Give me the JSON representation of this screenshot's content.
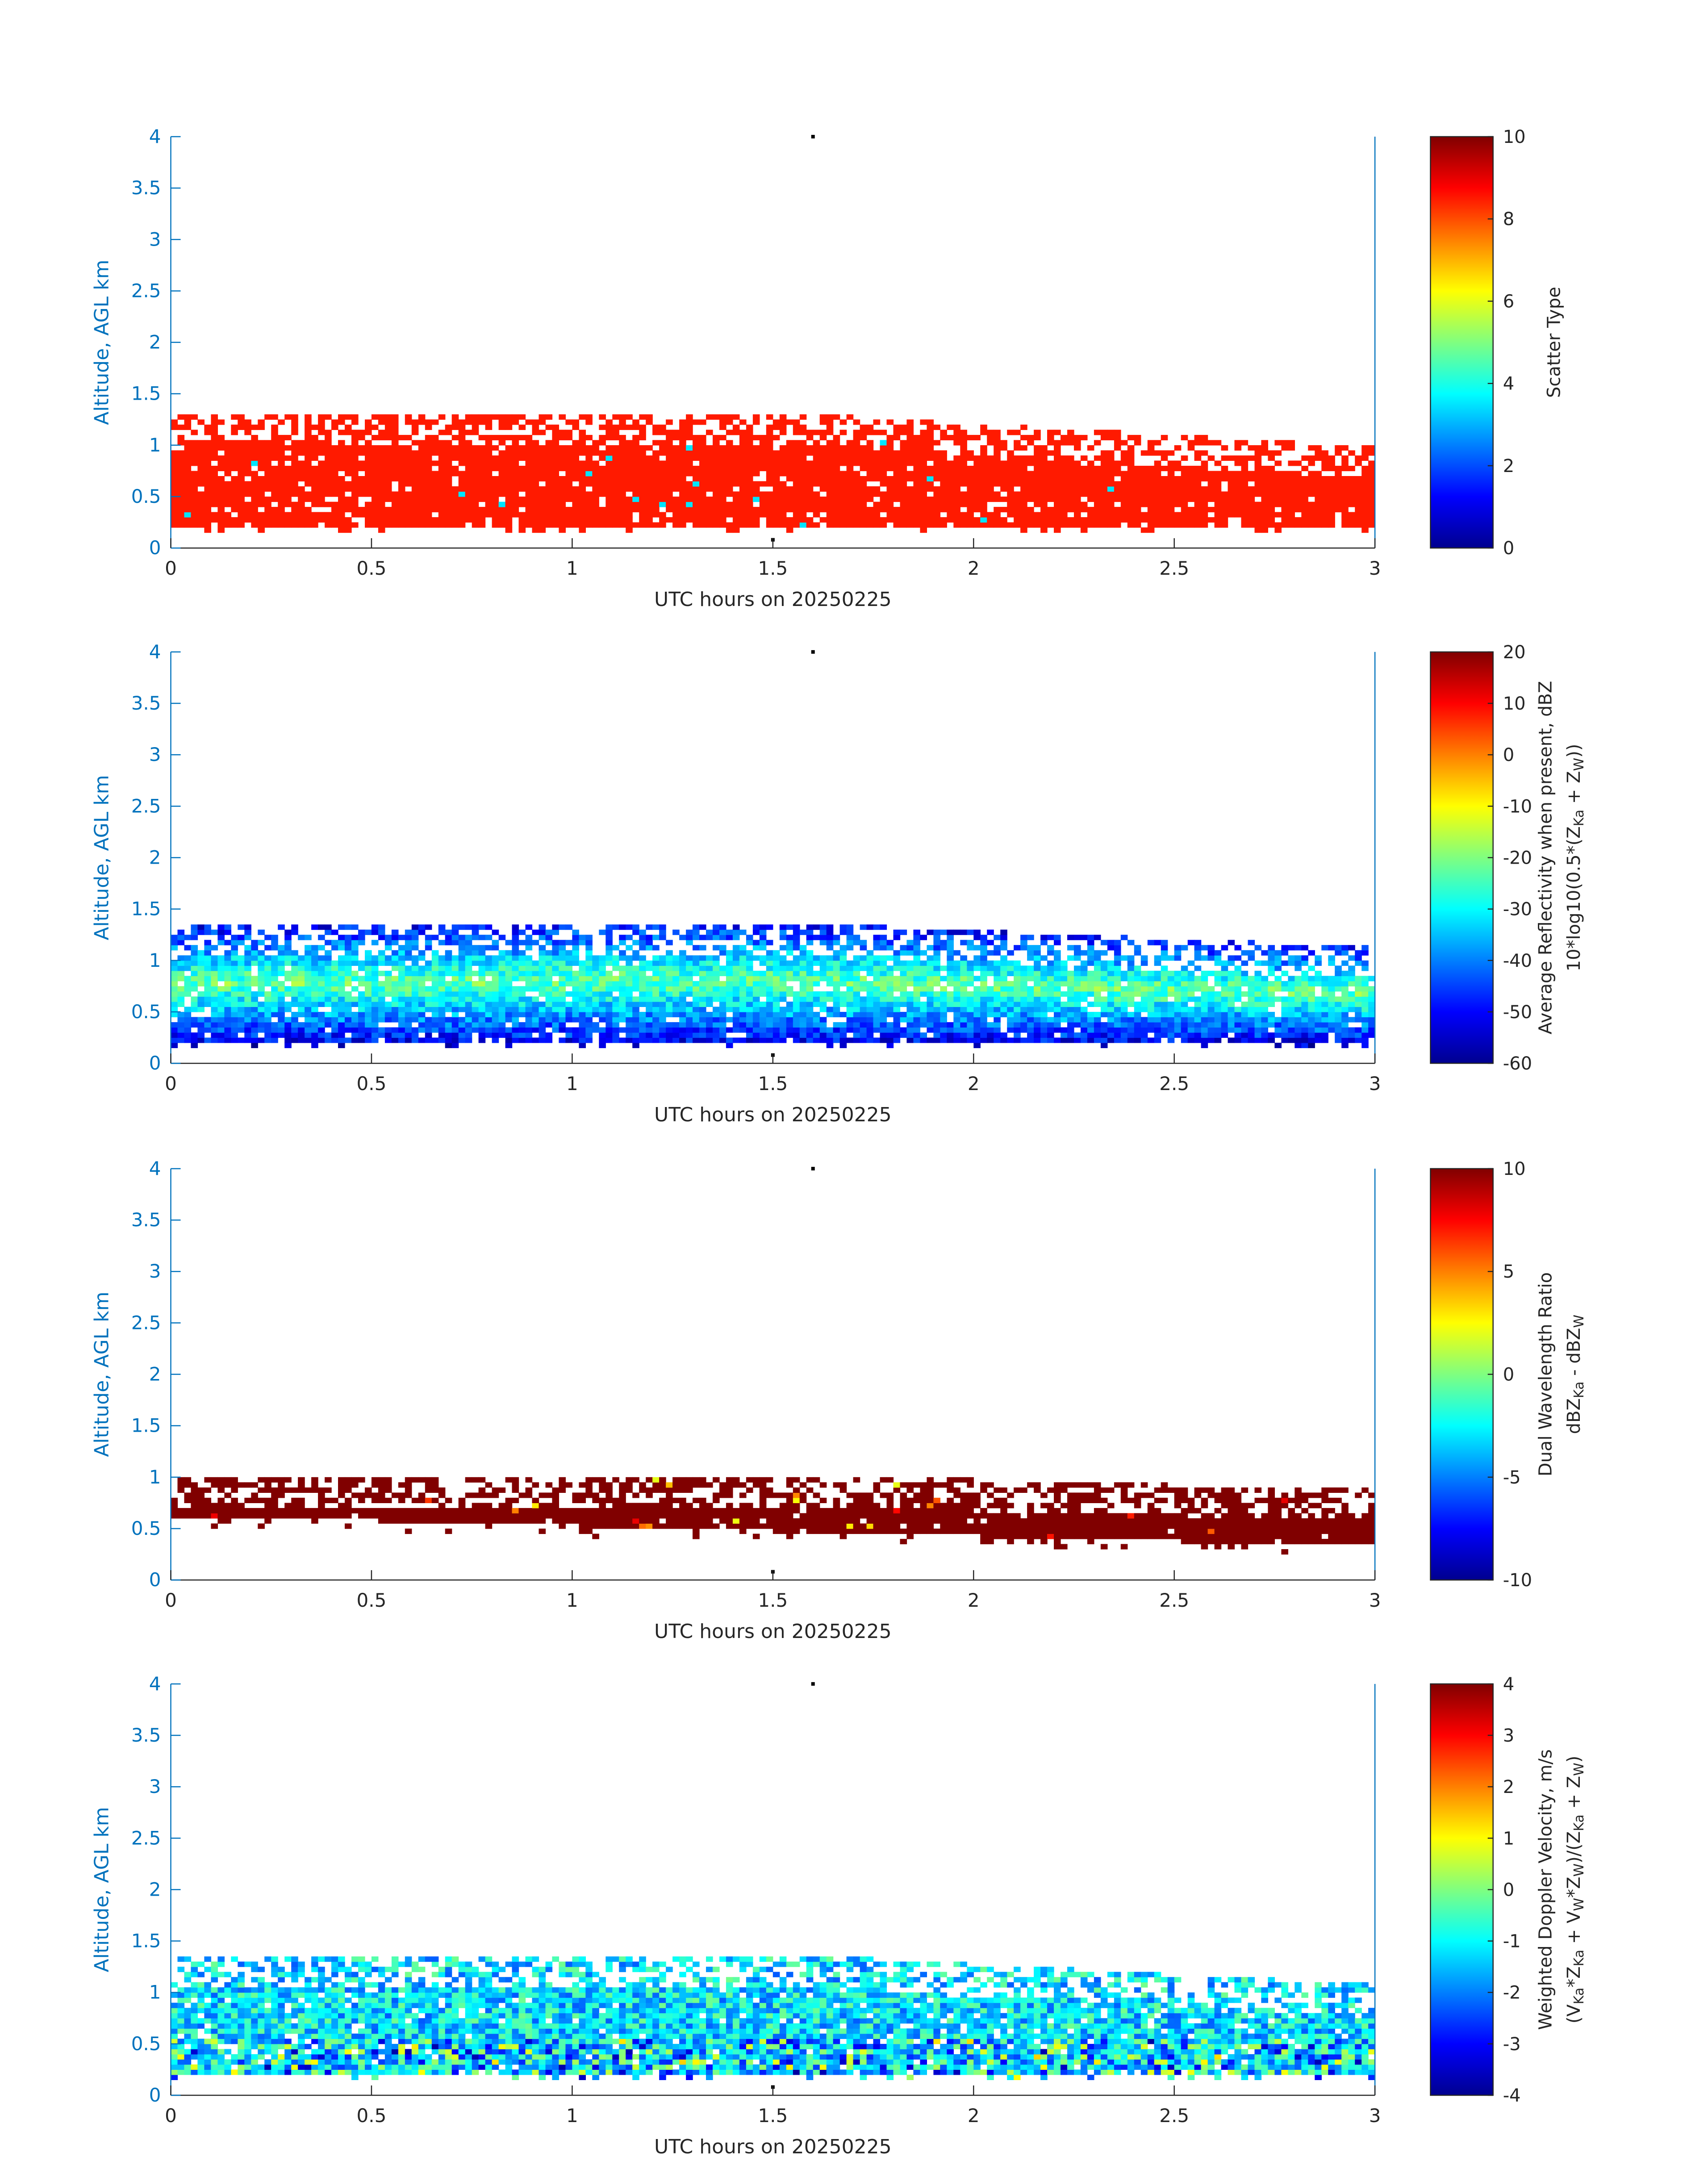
{
  "figure": {
    "xlabel": "UTC hours on 20250225",
    "ylabel": "Altitude, AGL km",
    "axis_color": "#0072BD",
    "text_color": "#262626",
    "x_ticks": [
      "0",
      "0.5",
      "1",
      "1.5",
      "2",
      "2.5",
      "3"
    ],
    "y_ticks": [
      "0",
      "0.5",
      "1",
      "1.5",
      "2",
      "2.5",
      "3",
      "3.5",
      "4"
    ]
  },
  "chart_data": [
    {
      "type": "heatmap",
      "colorbar_label": "Scatter Type",
      "colorbar_label_sub": "",
      "colormap": "jet",
      "clim": [
        0,
        10
      ],
      "colorbar_ticks": [
        0,
        2,
        4,
        6,
        8,
        10
      ],
      "xlim": [
        0,
        3
      ],
      "ylim": [
        0,
        4
      ],
      "dominant_value": 8.5,
      "layer": {
        "base_km": [
          0.2,
          0.2,
          0.2
        ],
        "top_km": [
          1.25,
          1.3,
          0.95
        ],
        "top_x_hours": [
          0.0,
          1.5,
          3.0
        ]
      },
      "markers": [
        {
          "x": 1.6,
          "y": 4.0
        },
        {
          "x": 1.5,
          "y": 0.08
        }
      ]
    },
    {
      "type": "heatmap",
      "colorbar_label": "Average Reflectivity when present, dBZ",
      "colorbar_label_sub": "10*log10(0.5*(Z<sub>Ka</sub> + Z<sub>W</sub>))",
      "colormap": "jet",
      "clim": [
        -60,
        20
      ],
      "colorbar_ticks": [
        -60,
        -50,
        -40,
        -30,
        -20,
        -10,
        0,
        10,
        20
      ],
      "xlim": [
        0,
        3
      ],
      "ylim": [
        0,
        4
      ],
      "layer": {
        "base_km": [
          0.2,
          0.2,
          0.2
        ],
        "top_km": [
          1.3,
          1.35,
          1.1
        ],
        "top_x_hours": [
          0.0,
          1.5,
          3.0
        ]
      },
      "markers": [
        {
          "x": 1.6,
          "y": 4.0
        },
        {
          "x": 1.5,
          "y": 0.08
        }
      ]
    },
    {
      "type": "heatmap",
      "colorbar_label": "Dual Wavelength Ratio",
      "colorbar_label_sub": "dBZ<sub>Ka</sub> - dBZ<sub>W</sub>",
      "colormap": "jet",
      "clim": [
        -10,
        10
      ],
      "colorbar_ticks": [
        -10,
        -5,
        0,
        5,
        10
      ],
      "xlim": [
        0,
        3
      ],
      "ylim": [
        0,
        4
      ],
      "dominant_value": 10,
      "layer": {
        "base_km": [
          0.6,
          0.45,
          0.3
        ],
        "top_km": [
          0.95,
          1.0,
          0.85
        ],
        "top_x_hours": [
          0.0,
          1.5,
          3.0
        ]
      },
      "markers": [
        {
          "x": 1.6,
          "y": 4.0
        },
        {
          "x": 1.5,
          "y": 0.08
        }
      ]
    },
    {
      "type": "heatmap",
      "colorbar_label": "Weighted Doppler Velocity, m/s",
      "colorbar_label_sub": "(V<sub>Ka</sub>*Z<sub>Ka</sub> + V<sub>W</sub>*Z<sub>W</sub>)/(Z<sub>Ka</sub> + Z<sub>W</sub>)",
      "colormap": "jet",
      "clim": [
        -4,
        4
      ],
      "colorbar_ticks": [
        -4,
        -3,
        -2,
        -1,
        0,
        1,
        2,
        3,
        4
      ],
      "xlim": [
        0,
        3
      ],
      "ylim": [
        0,
        4
      ],
      "layer": {
        "base_km": [
          0.2,
          0.2,
          0.2
        ],
        "top_km": [
          1.3,
          1.35,
          1.05
        ],
        "top_x_hours": [
          0.0,
          1.5,
          3.0
        ]
      },
      "markers": [
        {
          "x": 1.6,
          "y": 4.0
        },
        {
          "x": 1.5,
          "y": 0.08
        }
      ]
    }
  ]
}
